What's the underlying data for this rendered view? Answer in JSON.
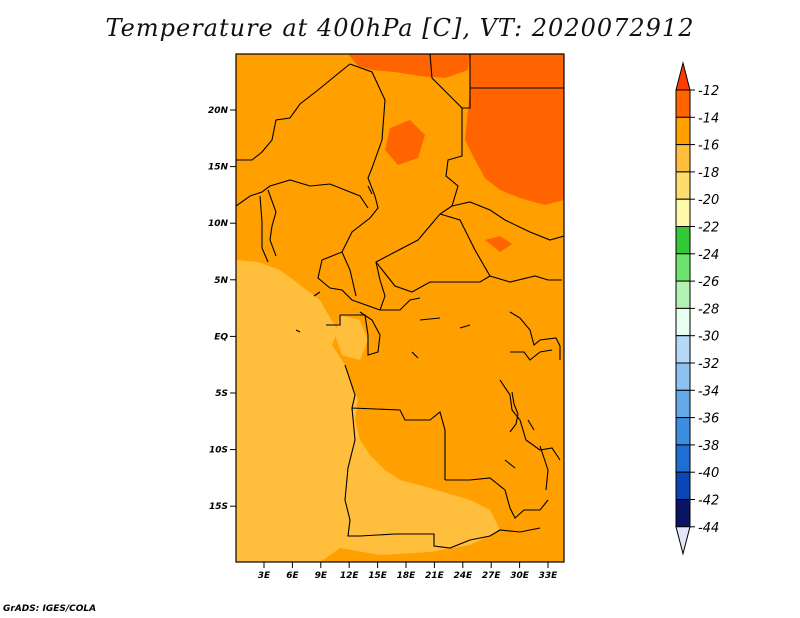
{
  "title": "Temperature at 400hPa [C], VT: 2020072912",
  "credit": "GrADS: IGES/COLA",
  "map": {
    "lat_labels": [
      "20N",
      "15N",
      "10N",
      "5N",
      "EQ",
      "5S",
      "10S",
      "15S"
    ],
    "lon_labels": [
      "3E",
      "6E",
      "9E",
      "12E",
      "15E",
      "18E",
      "21E",
      "24E",
      "27E",
      "30E",
      "33E"
    ],
    "fill_colors": {
      "warmest": "#ff6400",
      "warm": "#ffa000",
      "mid": "#ffbe3c",
      "cool": "#ffdc6e"
    }
  },
  "colorbar": {
    "labels": [
      "-12",
      "-14",
      "-16",
      "-18",
      "-20",
      "-22",
      "-24",
      "-26",
      "-28",
      "-30",
      "-32",
      "-34",
      "-36",
      "-38",
      "-40",
      "-42",
      "-44"
    ],
    "colors": [
      "#ff3c00",
      "#ff6400",
      "#ffa000",
      "#ffbe3c",
      "#ffdc6e",
      "#fffaaa",
      "#36c936",
      "#6fe36f",
      "#b2f2b2",
      "#e6fff0",
      "#b4d8f5",
      "#8cc2f0",
      "#64a8e8",
      "#3c8ee0",
      "#1e6ed4",
      "#0a46b4",
      "#0a1464",
      "#e6e6fa"
    ]
  }
}
